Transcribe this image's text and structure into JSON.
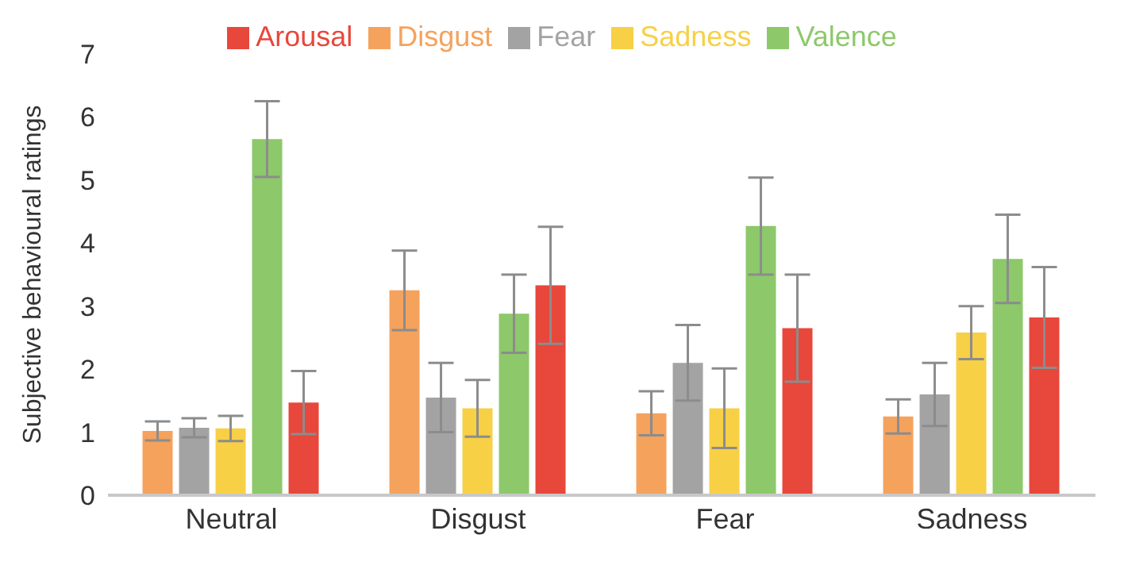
{
  "chart_data": {
    "type": "bar",
    "ylabel": "Subjective behavioural ratings",
    "categories": [
      "Neutral",
      "Disgust",
      "Fear",
      "Sadness"
    ],
    "series": [
      {
        "name": "Disgust",
        "color": "#f5a25d",
        "values": [
          1.02,
          3.25,
          1.3,
          1.25
        ],
        "errors": [
          0.15,
          0.63,
          0.35,
          0.27
        ]
      },
      {
        "name": "Fear",
        "color": "#a3a3a3",
        "values": [
          1.07,
          1.55,
          2.1,
          1.6
        ],
        "errors": [
          0.15,
          0.55,
          0.6,
          0.5
        ]
      },
      {
        "name": "Sadness",
        "color": "#f7d046",
        "values": [
          1.06,
          1.38,
          1.38,
          2.58
        ],
        "errors": [
          0.2,
          0.45,
          0.63,
          0.42
        ]
      },
      {
        "name": "Valence",
        "color": "#8dc86b",
        "values": [
          5.65,
          2.88,
          4.27,
          3.75
        ],
        "errors": [
          0.6,
          0.62,
          0.77,
          0.7
        ]
      },
      {
        "name": "Arousal",
        "color": "#e8473b",
        "values": [
          1.47,
          3.33,
          2.65,
          2.82
        ],
        "errors": [
          0.5,
          0.93,
          0.85,
          0.8
        ]
      }
    ],
    "ylim": [
      0,
      7
    ],
    "yticks": [
      0,
      1,
      2,
      3,
      4,
      5,
      6,
      7
    ],
    "grid": false,
    "legend": "top"
  }
}
